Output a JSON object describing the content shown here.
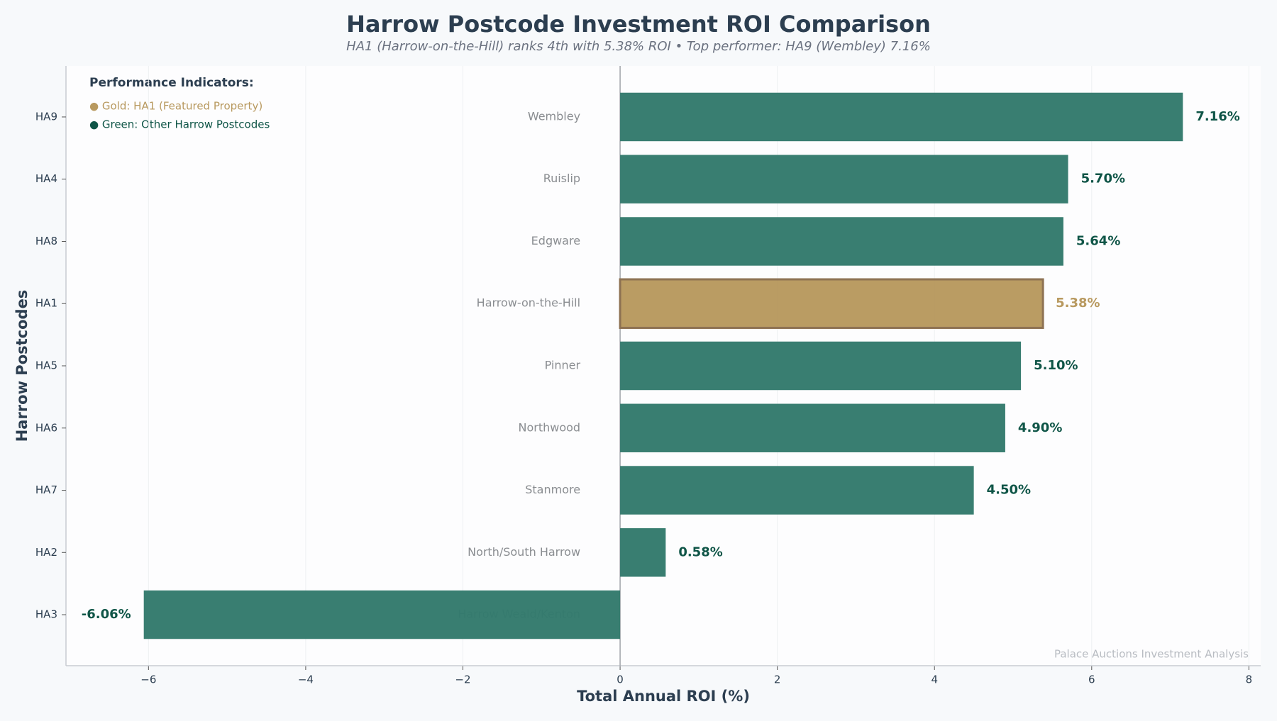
{
  "chart_data": {
    "type": "barh",
    "title": "Harrow Postcode Investment ROI Comparison",
    "subtitle": "HA1 (Harrow-on-the-Hill) ranks 4th with 5.38% ROI • Top performer: HA9 (Wembley) 7.16%",
    "x_label": "Total Annual ROI (%)",
    "y_label": "Harrow Postcodes",
    "categories": [
      "HA9",
      "HA4",
      "HA8",
      "HA1",
      "HA5",
      "HA6",
      "HA7",
      "HA2",
      "HA3"
    ],
    "names": [
      "Wembley",
      "Ruislip",
      "Edgware",
      "Harrow-on-the-Hill",
      "Pinner",
      "Northwood",
      "Stanmore",
      "North/South Harrow",
      "Harrow Weald/Kenton"
    ],
    "values": [
      7.16,
      5.7,
      5.64,
      5.38,
      5.1,
      4.9,
      4.5,
      0.58,
      -6.06
    ],
    "value_labels": [
      "7.16%",
      "5.70%",
      "5.64%",
      "5.38%",
      "5.10%",
      "4.90%",
      "4.50%",
      "0.58%",
      "-6.06%"
    ],
    "colors": [
      "#337a6c",
      "#337a6c",
      "#337a6c",
      "#b8995f",
      "#337a6c",
      "#337a6c",
      "#337a6c",
      "#337a6c",
      "#337a6c"
    ],
    "edge_colors": [
      "#337a6c",
      "#337a6c",
      "#337a6c",
      "#8b6e4e",
      "#337a6c",
      "#337a6c",
      "#337a6c",
      "#337a6c",
      "#337a6c"
    ],
    "label_colors": [
      "#0f5547",
      "#0f5547",
      "#0f5547",
      "#b8995f",
      "#0f5547",
      "#0f5547",
      "#0f5547",
      "#0f5547",
      "#0f5547"
    ],
    "xlim": [
      -7.05,
      8.15
    ],
    "xticks": [
      {
        "value": -6,
        "label": "−6"
      },
      {
        "value": -4,
        "label": "−4"
      },
      {
        "value": -2,
        "label": "−2"
      },
      0,
      2,
      4,
      6,
      8
    ],
    "grid": true,
    "legend": {
      "title": "Performance Indicators:",
      "items": [
        {
          "label": "● Gold: HA1 (Featured Property)",
          "color": "#b8995f"
        },
        {
          "label": "● Green: Other Harrow Postcodes",
          "color": "#0f5547"
        }
      ]
    },
    "watermark": "Palace Auctions Investment Analysis"
  }
}
